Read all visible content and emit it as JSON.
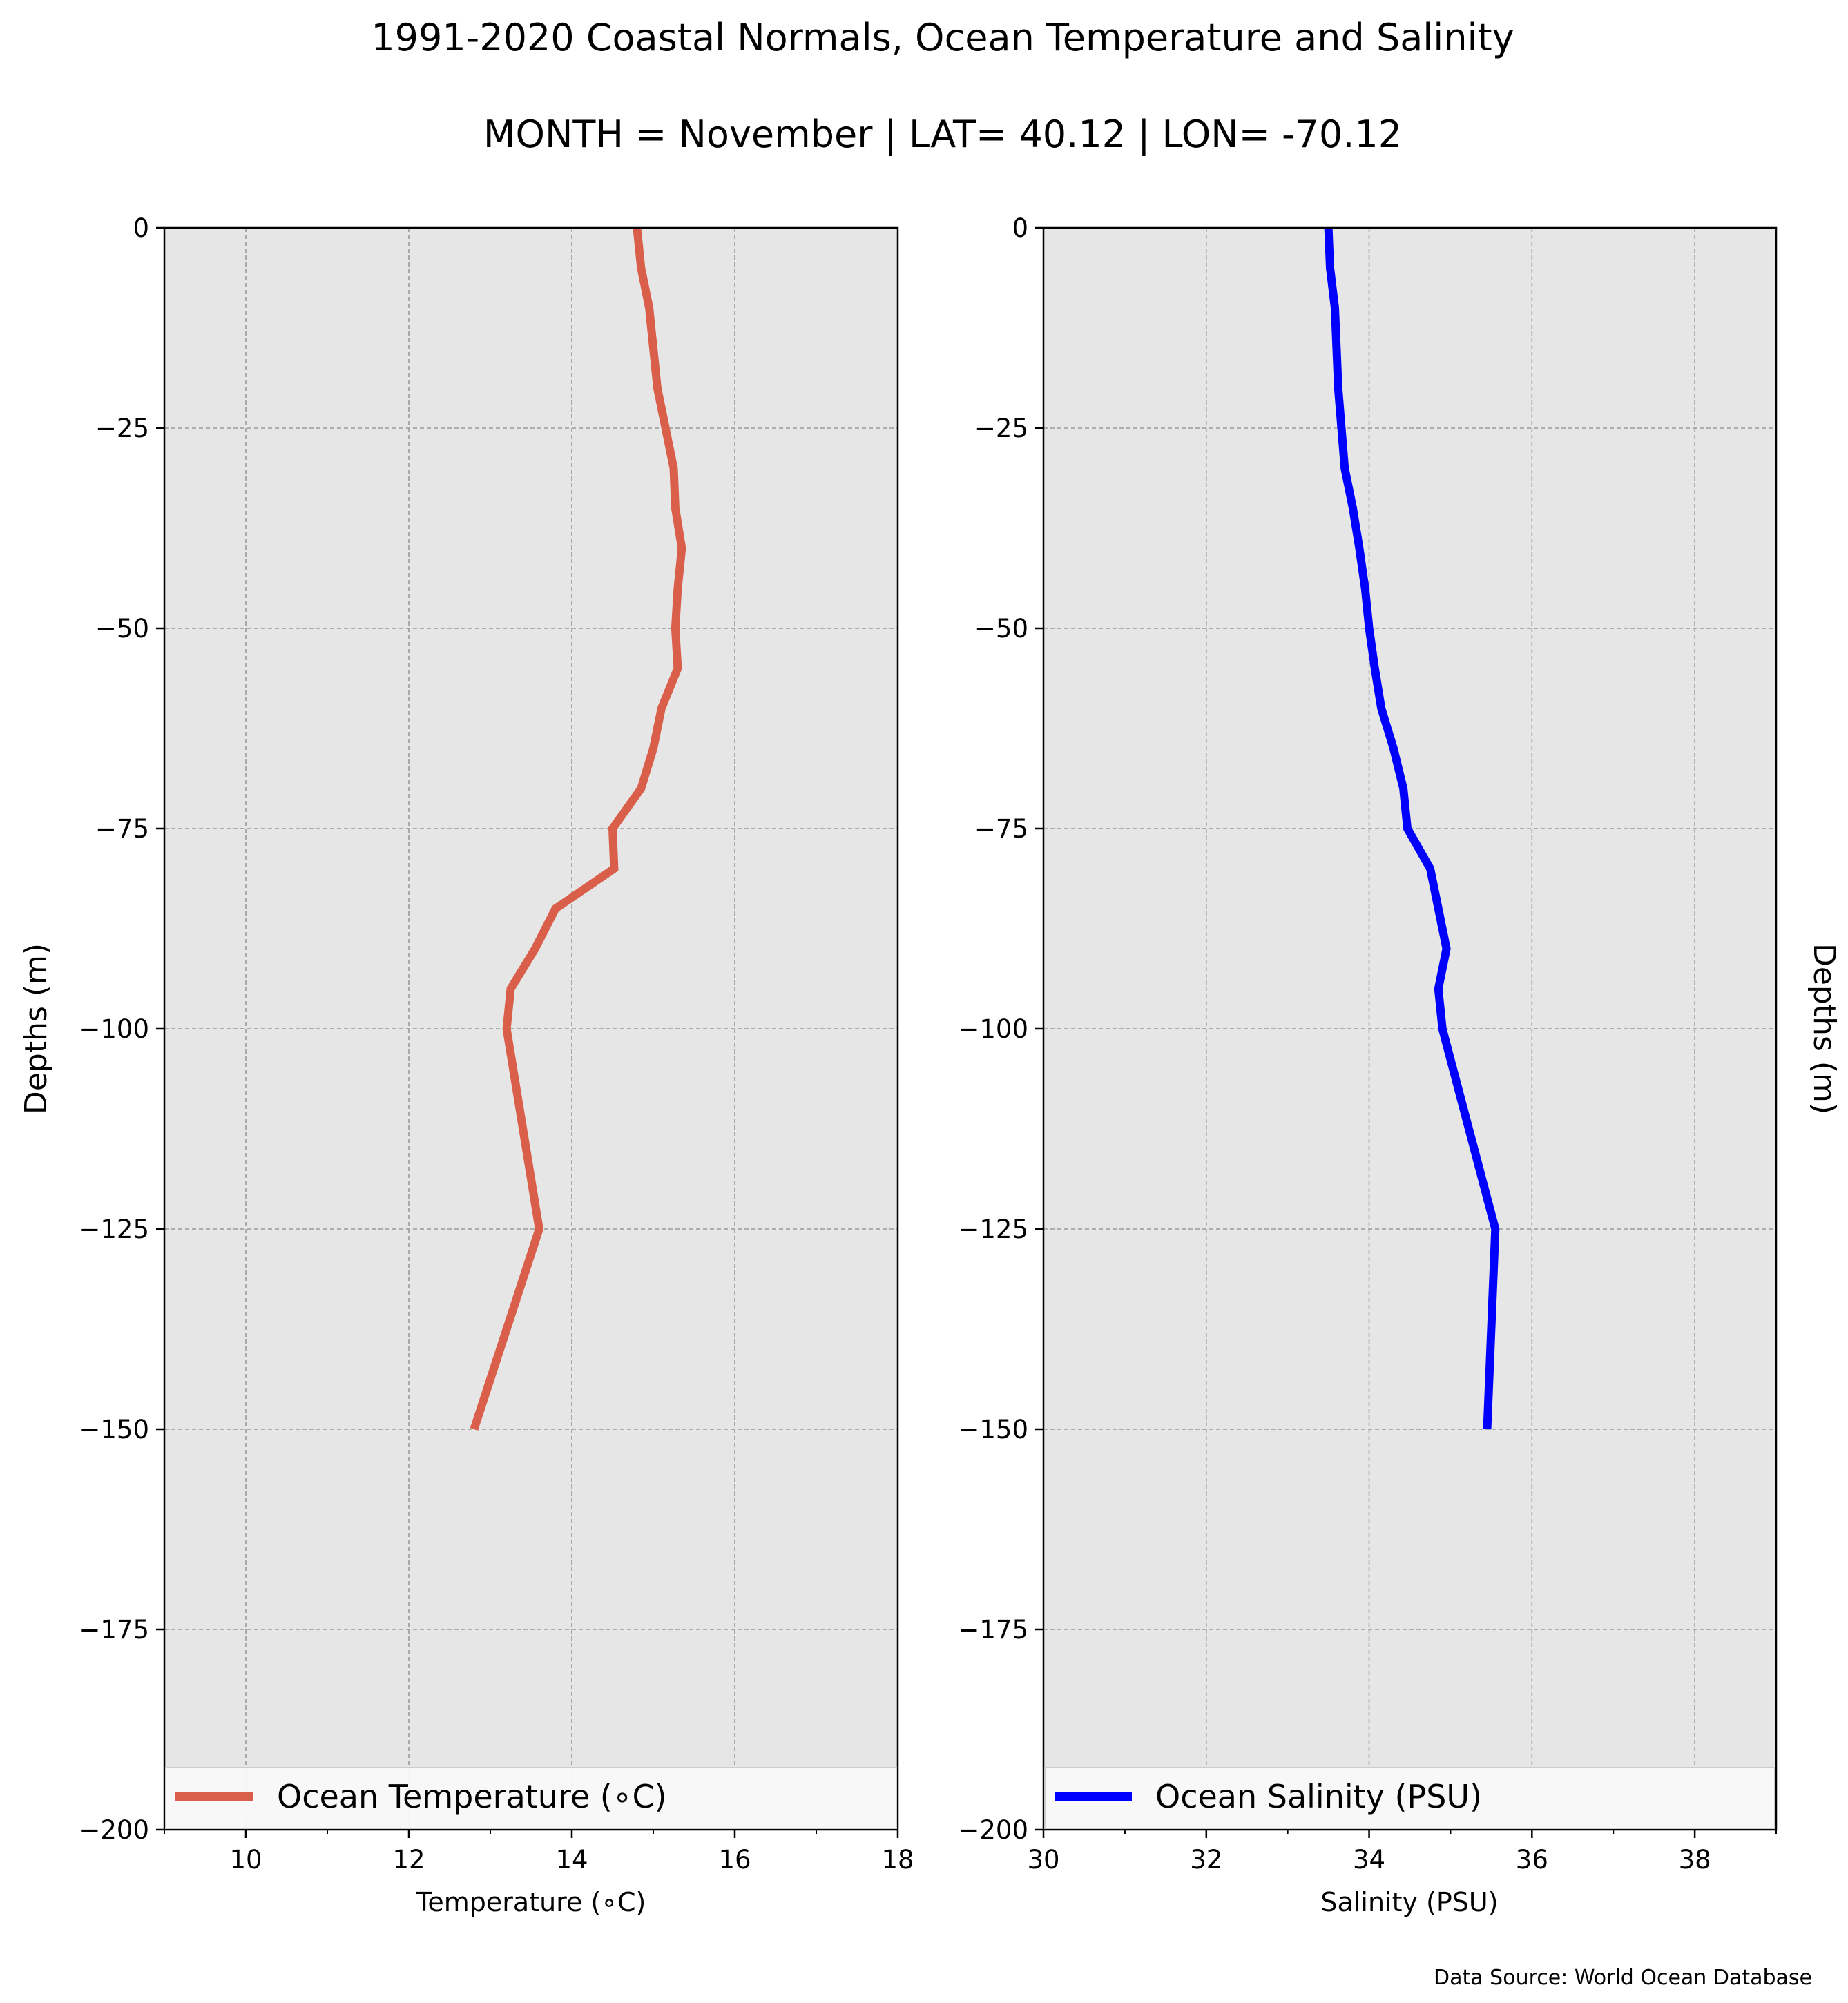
{
  "figure": {
    "title": "1991-2020 Coastal Normals, Ocean Temperature and Salinity",
    "subtitle": "MONTH = November | LAT= 40.12 | LON= -70.12",
    "source": "Data Source: World Ocean Database",
    "plot_background": "#e6e6e6",
    "grid_color": "#9a9a9a"
  },
  "chart_data": [
    {
      "type": "line",
      "xlabel": "Temperature (∘C)",
      "ylabel": "Depths (m)",
      "xlim": [
        9,
        18
      ],
      "ylim": [
        -200,
        0
      ],
      "xticks": [
        10,
        12,
        14,
        16,
        18
      ],
      "yticks": [
        0,
        -25,
        -50,
        -75,
        -100,
        -125,
        -150,
        -175,
        -200
      ],
      "grid": true,
      "legend_position": "bottom",
      "series": [
        {
          "name": "Ocean Temperature (∘C)",
          "color": "#d95f4b",
          "points": [
            [
              14.8,
              0
            ],
            [
              14.85,
              -5
            ],
            [
              14.95,
              -10
            ],
            [
              15.0,
              -15
            ],
            [
              15.05,
              -20
            ],
            [
              15.15,
              -25
            ],
            [
              15.25,
              -30
            ],
            [
              15.27,
              -35
            ],
            [
              15.35,
              -40
            ],
            [
              15.3,
              -45
            ],
            [
              15.27,
              -50
            ],
            [
              15.3,
              -55
            ],
            [
              15.1,
              -60
            ],
            [
              15.0,
              -65
            ],
            [
              14.85,
              -70
            ],
            [
              14.5,
              -75
            ],
            [
              14.52,
              -80
            ],
            [
              13.8,
              -85
            ],
            [
              13.55,
              -90
            ],
            [
              13.25,
              -95
            ],
            [
              13.2,
              -100
            ],
            [
              13.6,
              -125
            ],
            [
              12.8,
              -150
            ]
          ]
        }
      ]
    },
    {
      "type": "line",
      "xlabel": "Salinity (PSU)",
      "ylabel": "Depths (m)",
      "xlim": [
        30,
        39
      ],
      "ylim": [
        -200,
        0
      ],
      "xticks": [
        30,
        32,
        34,
        36,
        38
      ],
      "yticks": [
        0,
        -25,
        -50,
        -75,
        -100,
        -125,
        -150,
        -175,
        -200
      ],
      "grid": true,
      "legend_position": "bottom",
      "series": [
        {
          "name": "Ocean Salinity (PSU)",
          "color": "#0000ff",
          "points": [
            [
              33.5,
              0
            ],
            [
              33.52,
              -5
            ],
            [
              33.58,
              -10
            ],
            [
              33.62,
              -20
            ],
            [
              33.7,
              -30
            ],
            [
              33.8,
              -35
            ],
            [
              33.88,
              -40
            ],
            [
              33.95,
              -45
            ],
            [
              34.0,
              -50
            ],
            [
              34.07,
              -55
            ],
            [
              34.15,
              -60
            ],
            [
              34.3,
              -65
            ],
            [
              34.42,
              -70
            ],
            [
              34.47,
              -75
            ],
            [
              34.75,
              -80
            ],
            [
              34.85,
              -85
            ],
            [
              34.95,
              -90
            ],
            [
              34.85,
              -95
            ],
            [
              34.9,
              -100
            ],
            [
              35.55,
              -125
            ],
            [
              35.45,
              -150
            ]
          ]
        }
      ]
    }
  ]
}
